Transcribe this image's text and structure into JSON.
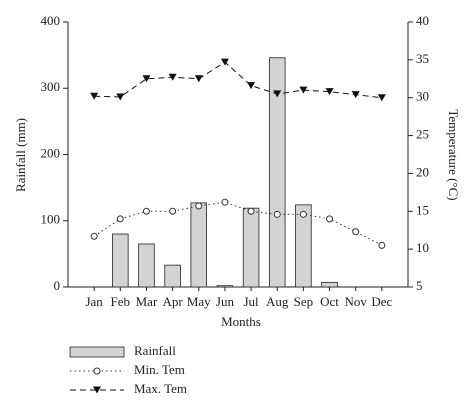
{
  "chart_data": {
    "type": "bar",
    "xlabel": "Months",
    "ylabel": "Rainfall (mm)",
    "y2label": "Temperature (°C)",
    "categories": [
      "Jan",
      "Feb",
      "Mar",
      "Apr",
      "May",
      "Jun",
      "Jul",
      "Aug",
      "Sep",
      "Oct",
      "Nov",
      "Dec"
    ],
    "series": [
      {
        "name": "Rainfall",
        "type": "bar",
        "color": "#d3d3d3",
        "values": [
          0,
          80,
          65,
          33,
          127,
          2,
          119,
          346,
          124,
          7,
          0,
          0
        ]
      },
      {
        "name": "Min. Tem",
        "type": "line",
        "axis": "y2",
        "color": "#333333",
        "marker": "circle",
        "dash": "1.5 3",
        "values": [
          11.7,
          14.0,
          15.0,
          15.0,
          15.7,
          16.2,
          15.0,
          14.6,
          14.6,
          14.0,
          12.3,
          10.5
        ]
      },
      {
        "name": "Max. Tem",
        "type": "line",
        "axis": "y2",
        "color": "#111111",
        "marker": "triangle",
        "dash": "6 4",
        "values": [
          30.2,
          30.1,
          32.5,
          32.7,
          32.5,
          34.7,
          31.6,
          30.5,
          31.0,
          30.8,
          30.4,
          30.0
        ]
      }
    ],
    "ylim": [
      0,
      400
    ],
    "yticks": [
      0,
      100,
      200,
      300,
      400
    ],
    "y2lim": [
      5,
      40
    ],
    "y2ticks": [
      5,
      10,
      15,
      20,
      25,
      30,
      35,
      40
    ],
    "grid": false
  }
}
